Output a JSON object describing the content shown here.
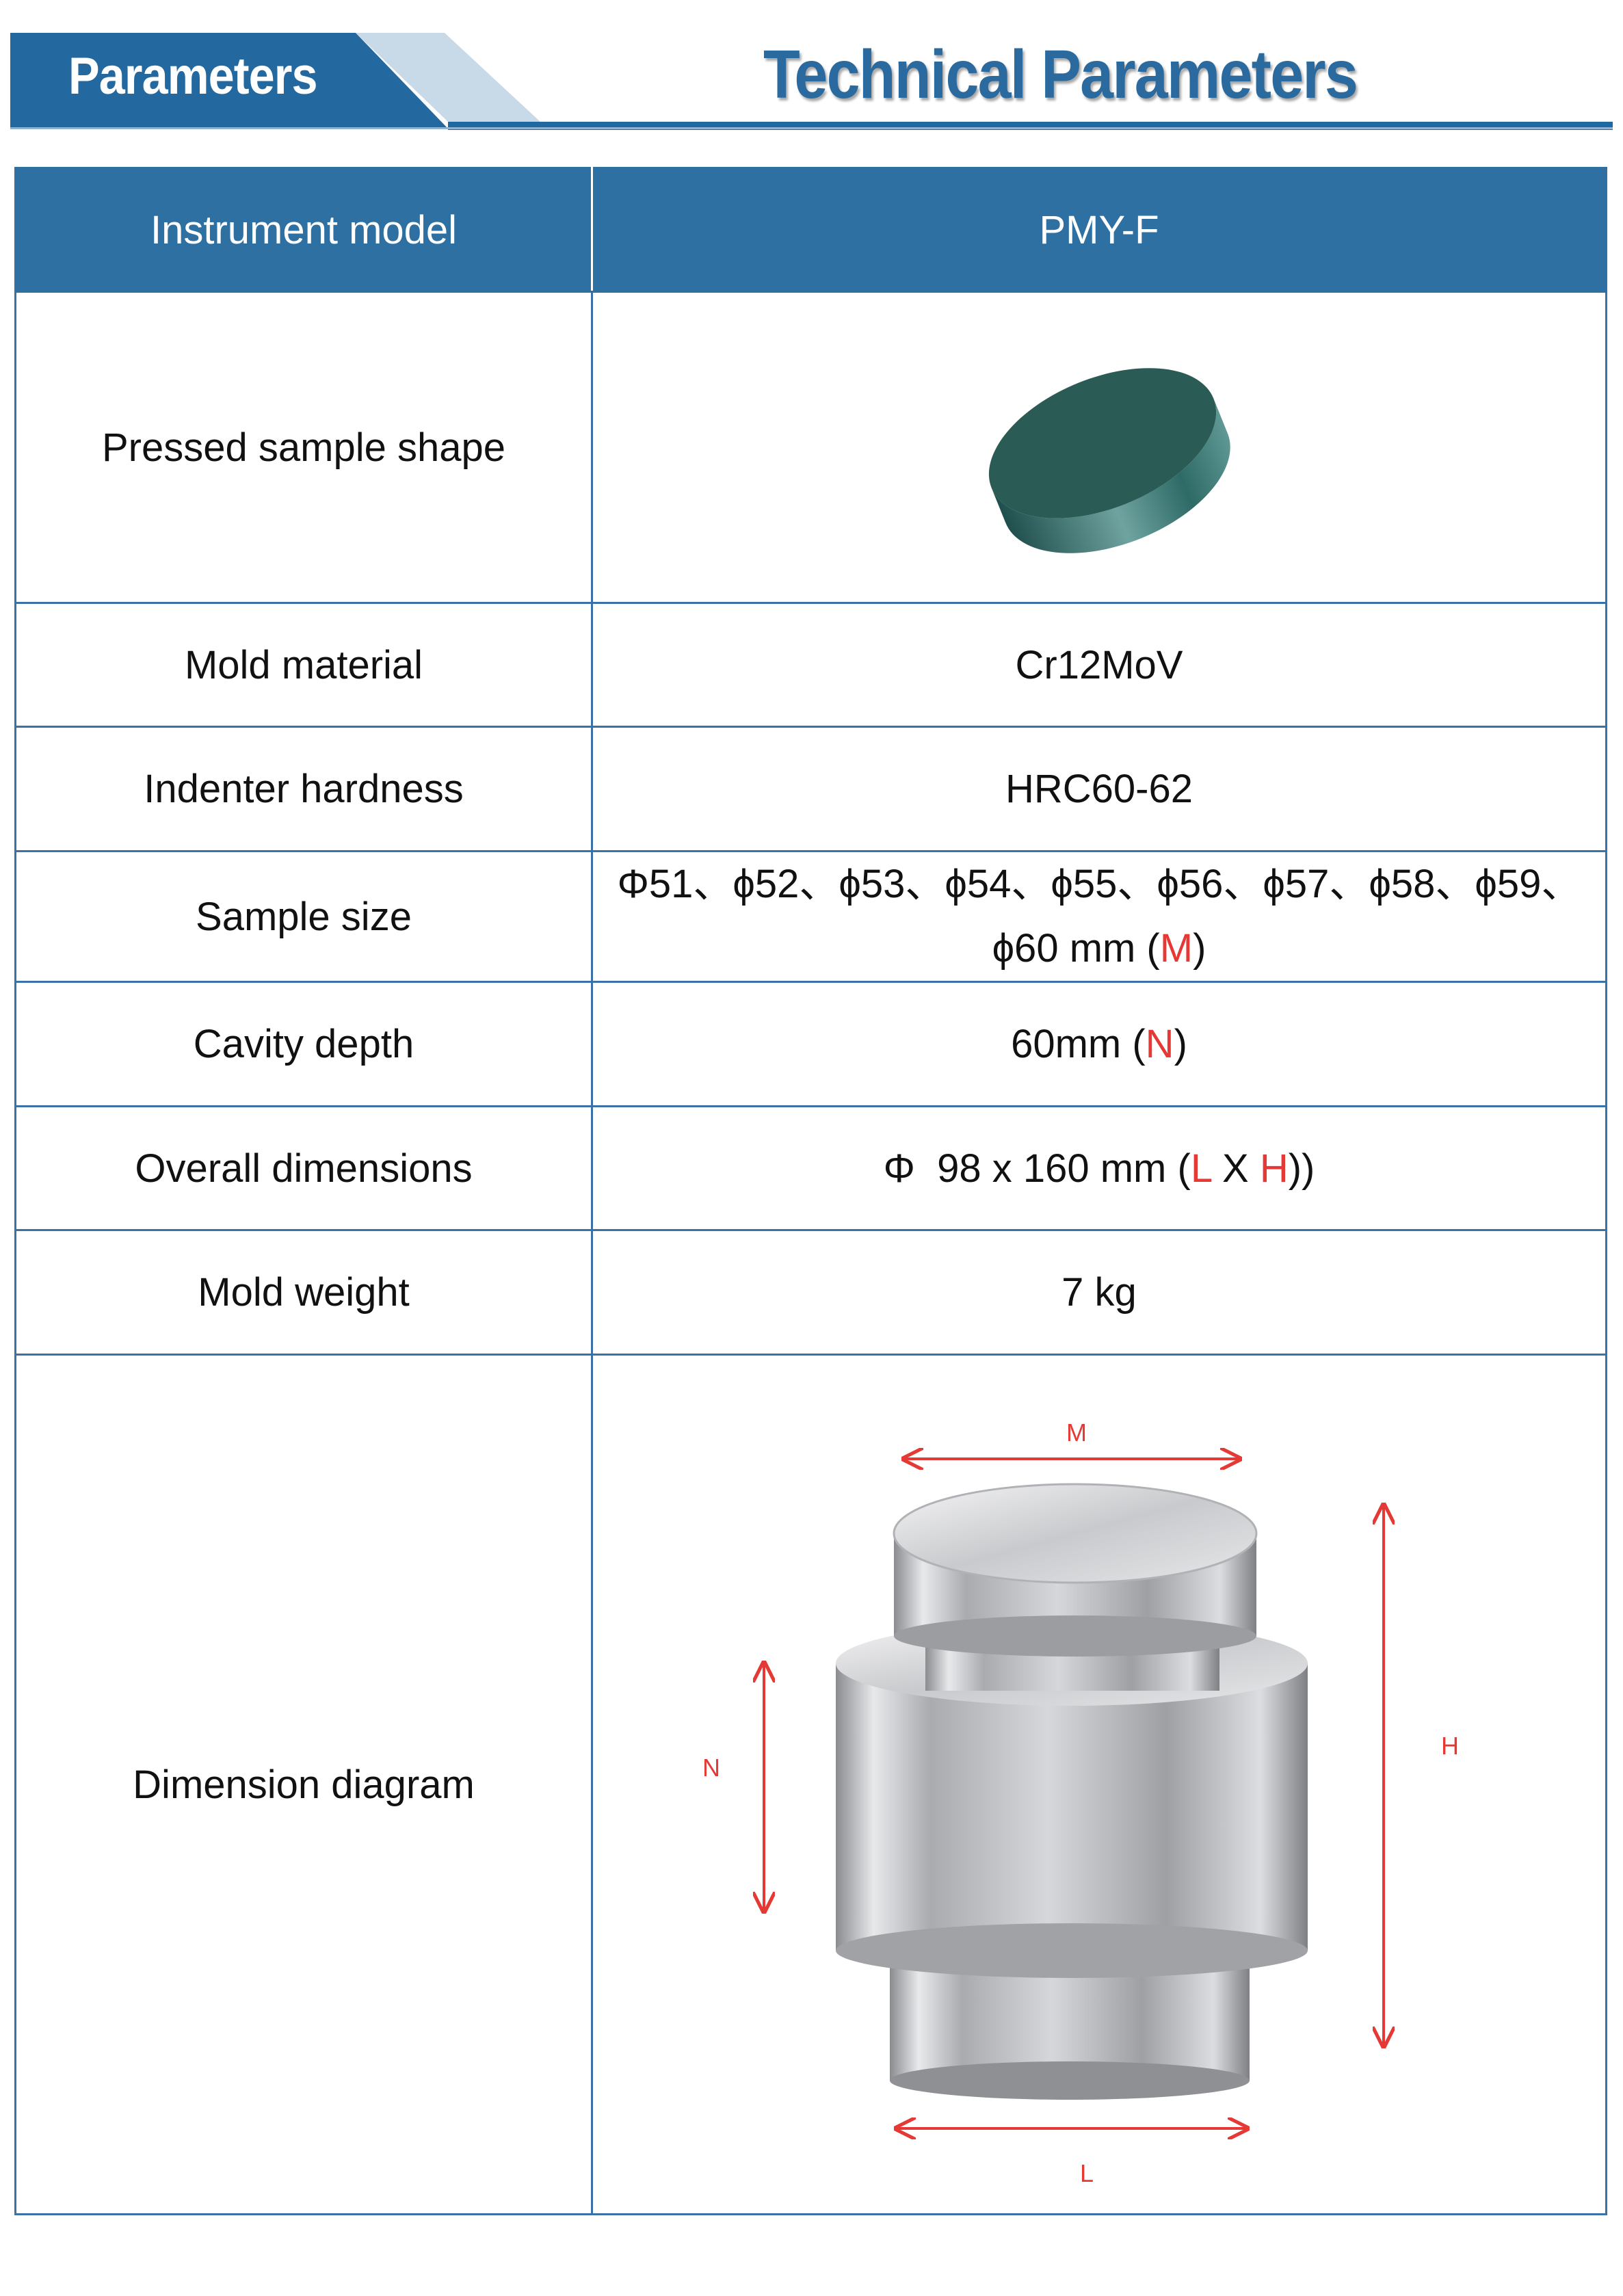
{
  "banner": {
    "label": "Parameters",
    "title": "Technical Parameters"
  },
  "colors": {
    "brand_blue": "#2e70a2",
    "accent_red": "#e53935"
  },
  "table": {
    "header": {
      "label": "Instrument model",
      "value": "PMY-F"
    },
    "rows": [
      {
        "label": "Pressed sample shape",
        "image": "green-disc-sample"
      },
      {
        "label": "Mold material",
        "value": "Cr12MoV"
      },
      {
        "label": "Indenter hardness",
        "value": "HRC60-62"
      },
      {
        "label": "Sample size",
        "value_line1": "Φ51、ϕ52、ϕ53、ϕ54、ϕ55、ϕ56、ϕ57、ϕ58、ϕ59、",
        "value_line2": "ϕ60 mm (",
        "marker": "M",
        "suffix": ")"
      },
      {
        "label": "Cavity depth",
        "value": "60mm (",
        "marker": "N",
        "suffix": ")"
      },
      {
        "label": "Overall dimensions",
        "value": "Φ  98 x 160 mm (",
        "marker_l": "L",
        "sep": " X ",
        "marker_h": "H",
        "suffix": "))"
      },
      {
        "label": "Mold weight",
        "value": "7 kg"
      },
      {
        "label": "Dimension diagram",
        "image": "steel-mold",
        "labels": {
          "m": "M",
          "n": "N",
          "h": "H",
          "l": "L"
        }
      }
    ]
  }
}
